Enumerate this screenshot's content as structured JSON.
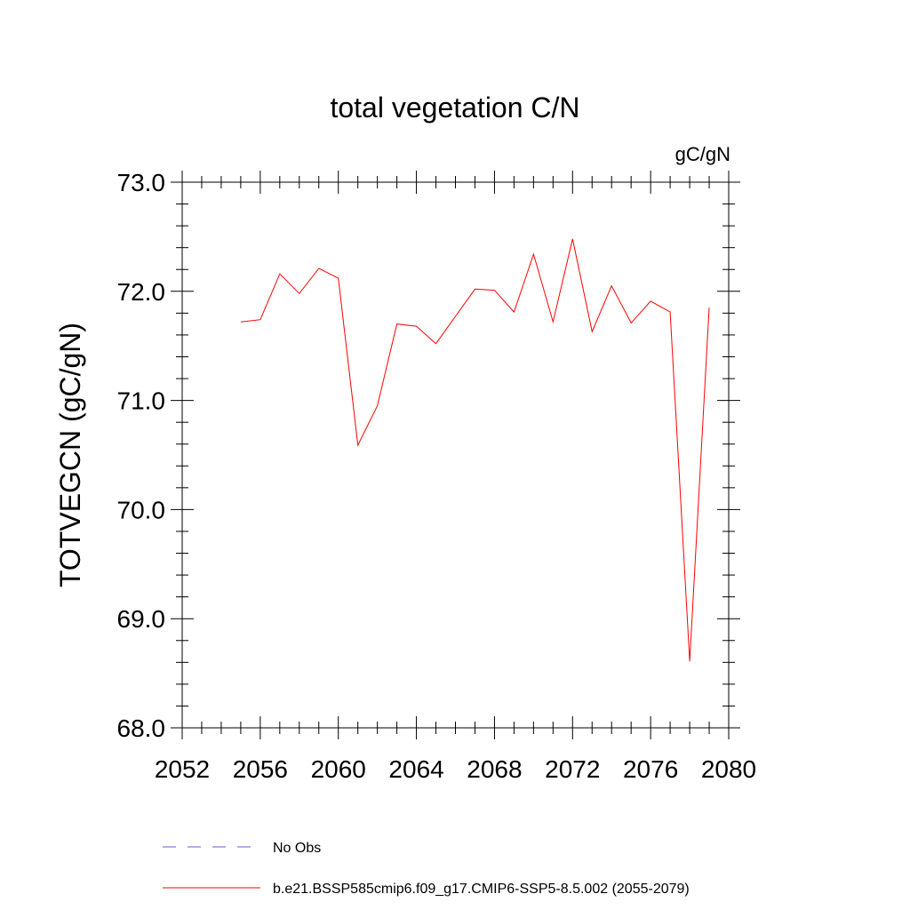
{
  "chart_data": {
    "type": "line",
    "title": "total vegetation C/N",
    "units_label": "gC/gN",
    "ylabel": "TOTVEGCN  (gC/gN)",
    "xlabel": "",
    "xlim": [
      2052,
      2080
    ],
    "ylim": [
      68.0,
      73.0
    ],
    "x_ticks": [
      2052,
      2056,
      2060,
      2064,
      2068,
      2072,
      2076,
      2080
    ],
    "x_tick_labels": [
      "2052",
      "2056",
      "2060",
      "2064",
      "2068",
      "2072",
      "2076",
      "2080"
    ],
    "x_minor_step": 1,
    "y_ticks": [
      68.0,
      69.0,
      70.0,
      71.0,
      72.0,
      73.0
    ],
    "y_tick_labels": [
      "68.0",
      "69.0",
      "70.0",
      "71.0",
      "72.0",
      "73.0"
    ],
    "y_minor_step": 0.2,
    "grid": false,
    "series": [
      {
        "name": "b.e21.BSSP585cmip6.f09_g17.CMIP6-SSP5-8.5.002 (2055-2079)",
        "color": "#ff0000",
        "style": "solid",
        "x": [
          2055,
          2056,
          2057,
          2058,
          2059,
          2060,
          2061,
          2062,
          2063,
          2064,
          2065,
          2066,
          2067,
          2068,
          2069,
          2070,
          2071,
          2072,
          2073,
          2074,
          2075,
          2076,
          2077,
          2078,
          2079
        ],
        "values": [
          71.72,
          71.74,
          72.16,
          71.98,
          72.21,
          72.12,
          70.59,
          70.95,
          71.7,
          71.68,
          71.52,
          71.77,
          72.02,
          72.01,
          71.81,
          72.34,
          71.72,
          72.48,
          71.63,
          72.05,
          71.71,
          71.91,
          71.81,
          68.61,
          71.85
        ]
      }
    ],
    "legend": {
      "placement": "bottom",
      "entries": [
        {
          "label": "No Obs",
          "color": "#6a5acd",
          "style": "dashed"
        },
        {
          "label": "b.e21.BSSP585cmip6.f09_g17.CMIP6-SSP5-8.5.002 (2055-2079)",
          "color": "#ff0000",
          "style": "solid"
        }
      ]
    }
  }
}
